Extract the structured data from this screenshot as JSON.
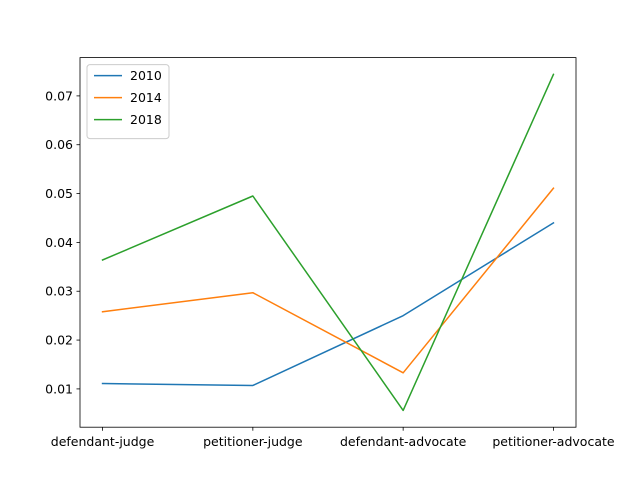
{
  "chart_data": {
    "type": "line",
    "title": "",
    "xlabel": "",
    "ylabel": "",
    "categories": [
      "defendant-judge",
      "petitioner-judge",
      "defendant-advocate",
      "petitioner-advocate"
    ],
    "series": [
      {
        "name": "2010",
        "values": [
          0.0111,
          0.0107,
          0.025,
          0.044
        ],
        "color": "#1f77b4"
      },
      {
        "name": "2014",
        "values": [
          0.0258,
          0.0297,
          0.0133,
          0.0511
        ],
        "color": "#ff7f0e"
      },
      {
        "name": "2018",
        "values": [
          0.0364,
          0.0495,
          0.0056,
          0.0744
        ],
        "color": "#2ca02c"
      }
    ],
    "yticks": [
      0.01,
      0.02,
      0.03,
      0.04,
      0.05,
      0.06,
      0.07
    ],
    "ytick_labels": [
      "0.01",
      "0.02",
      "0.03",
      "0.04",
      "0.05",
      "0.06",
      "0.07"
    ],
    "ylim": [
      0.00216,
      0.07784
    ],
    "grid": false,
    "legend_position": "upper left"
  }
}
